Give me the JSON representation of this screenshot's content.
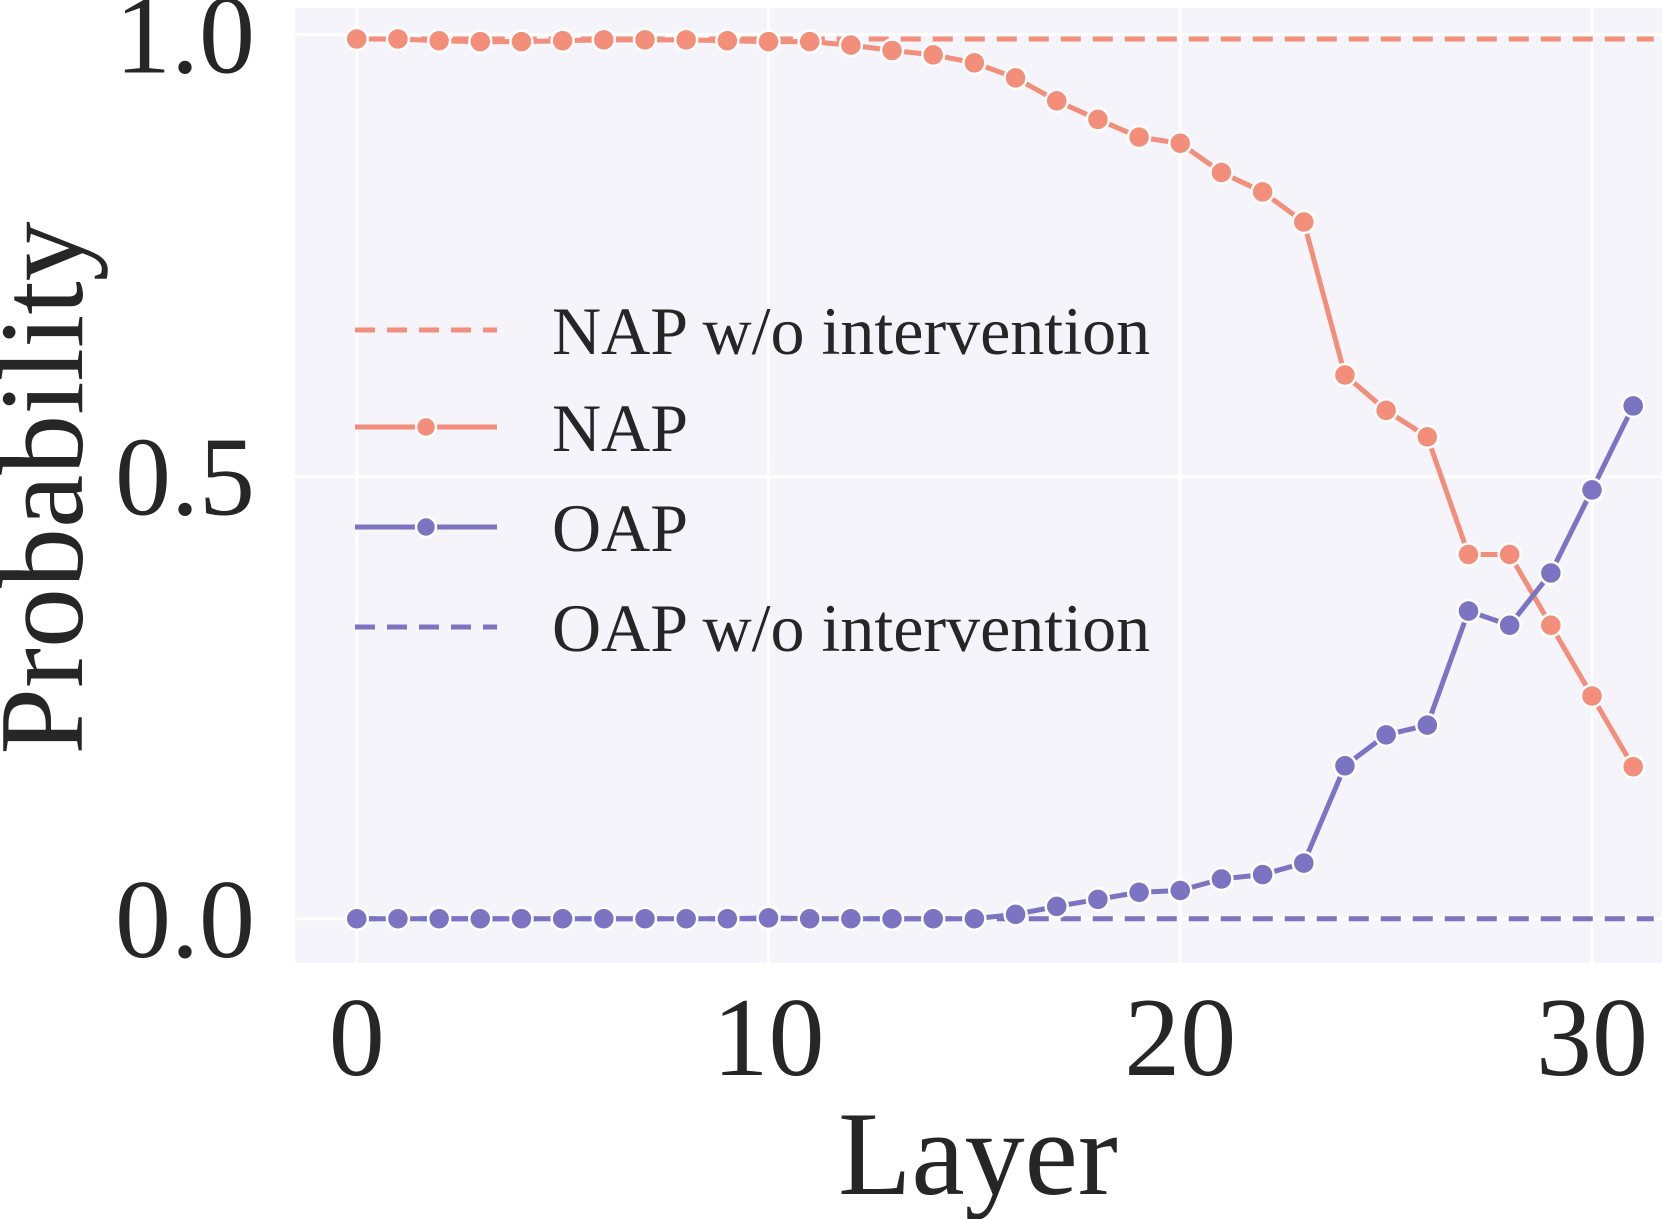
{
  "chart_data": {
    "type": "line",
    "title": "",
    "xlabel": "Layer",
    "ylabel": "Probability",
    "xlim": [
      -1.5,
      31.7
    ],
    "ylim": [
      -0.05,
      1.03
    ],
    "xticks": [
      0,
      10,
      20,
      30
    ],
    "xtick_labels": [
      "0",
      "10",
      "20",
      "30"
    ],
    "yticks": [
      0.0,
      0.5,
      1.0
    ],
    "ytick_labels": [
      "0.0",
      "0.5",
      "1.0"
    ],
    "grid": true,
    "legend_position": "center-left",
    "x": [
      0,
      1,
      2,
      3,
      4,
      5,
      6,
      7,
      8,
      9,
      10,
      11,
      12,
      13,
      14,
      15,
      16,
      17,
      18,
      19,
      20,
      21,
      22,
      23,
      24,
      25,
      26,
      27,
      28,
      29,
      30,
      31
    ],
    "series": [
      {
        "name": "NAP w/o intervention",
        "style": "dashed",
        "color": "#f28e7a",
        "x": [
          0,
          31.5
        ],
        "values": [
          0.995,
          0.995
        ]
      },
      {
        "name": "NAP",
        "style": "solid-markers",
        "color": "#f28e7a",
        "values": [
          0.995,
          0.995,
          0.993,
          0.992,
          0.992,
          0.993,
          0.994,
          0.994,
          0.994,
          0.993,
          0.992,
          0.992,
          0.988,
          0.982,
          0.977,
          0.968,
          0.951,
          0.925,
          0.904,
          0.884,
          0.877,
          0.844,
          0.822,
          0.788,
          0.615,
          0.575,
          0.545,
          0.412,
          0.412,
          0.332,
          0.252,
          0.172
        ]
      },
      {
        "name": "OAP",
        "style": "solid-markers",
        "color": "#7b74c3",
        "values": [
          0.0,
          0.0,
          0.0,
          0.0,
          0.0,
          0.0,
          0.0,
          0.0,
          0.0,
          0.0,
          0.001,
          0.0,
          0.0,
          0.0,
          0.0,
          0.0,
          0.005,
          0.014,
          0.022,
          0.03,
          0.032,
          0.045,
          0.05,
          0.063,
          0.173,
          0.208,
          0.219,
          0.348,
          0.332,
          0.391,
          0.485,
          0.58
        ]
      },
      {
        "name": "OAP w/o intervention",
        "style": "dashed",
        "color": "#7b74c3",
        "x": [
          0,
          31.5
        ],
        "values": [
          0.0,
          0.0
        ]
      }
    ]
  },
  "colors": {
    "nap": "#f28e7a",
    "oap": "#7b74c3",
    "plot_background": "#f4f4fa",
    "grid": "#ffffff",
    "text": "#262626"
  }
}
